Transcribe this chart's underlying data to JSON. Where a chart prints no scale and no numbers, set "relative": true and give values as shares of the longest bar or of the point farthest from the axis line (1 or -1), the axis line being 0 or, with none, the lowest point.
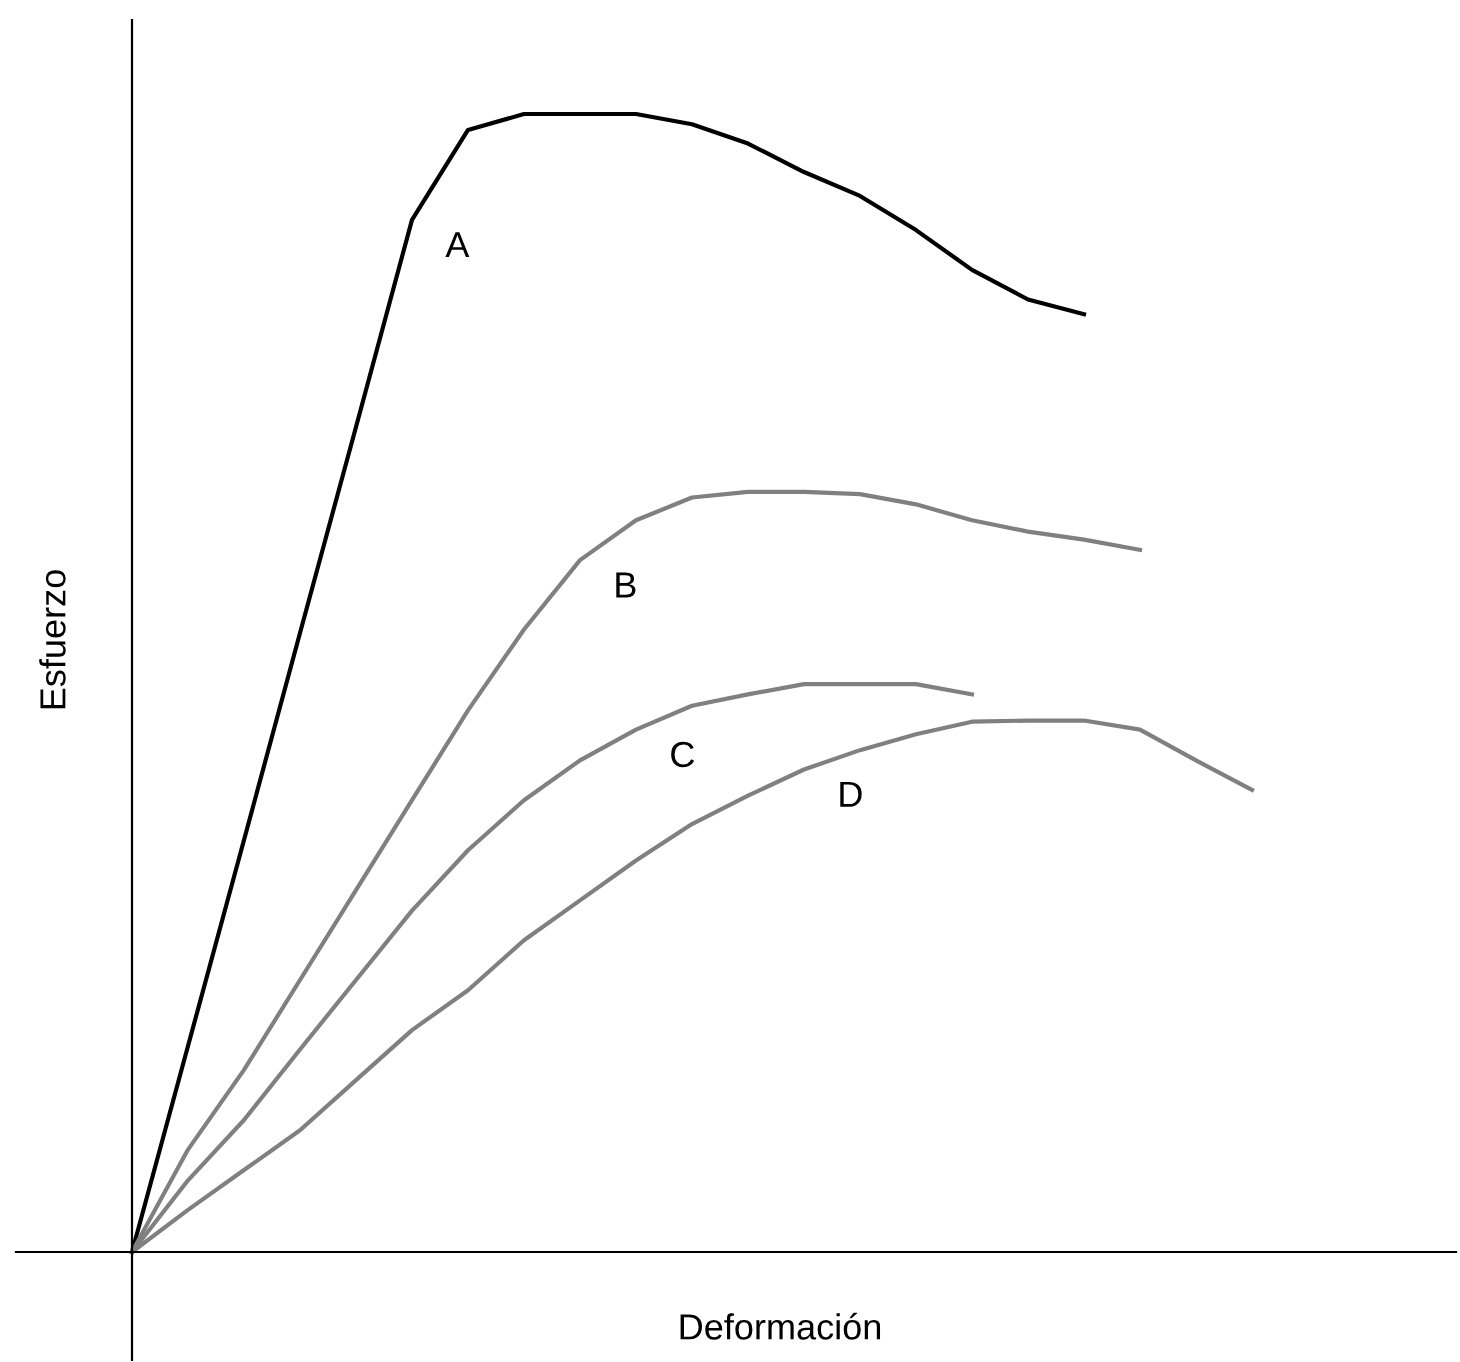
{
  "chart_data": {
    "type": "line",
    "relative": true,
    "xlabel": "Deformación",
    "ylabel": "Esfuerzo",
    "categories": [
      null,
      null,
      null,
      null,
      null,
      null,
      null,
      null,
      null,
      null,
      null,
      null,
      null,
      null,
      null,
      null,
      null,
      null,
      null,
      null,
      null
    ],
    "series": [
      {
        "name": "A",
        "color": "#000000",
        "values": [
          0,
          0.181,
          0.362,
          0.544,
          0.725,
          0.907,
          0.986,
          1.0,
          1.0,
          1.0,
          0.991,
          0.974,
          0.949,
          0.928,
          0.898,
          0.863,
          0.837,
          0.824,
          null,
          null,
          null
        ]
      },
      {
        "name": "B",
        "color": "#808080",
        "values": [
          0,
          0.09,
          0.16,
          0.239,
          0.318,
          0.397,
          0.476,
          0.547,
          0.608,
          0.643,
          0.663,
          0.668,
          0.668,
          0.666,
          0.657,
          0.643,
          0.633,
          0.626,
          0.617,
          null,
          null
        ]
      },
      {
        "name": "C",
        "color": "#808080",
        "values": [
          0,
          0.063,
          0.116,
          0.178,
          0.239,
          0.3,
          0.353,
          0.397,
          0.432,
          0.459,
          0.48,
          0.49,
          0.499,
          0.499,
          0.499,
          0.49,
          null,
          null,
          null,
          null,
          null
        ]
      },
      {
        "name": "D",
        "color": "#808080",
        "values": [
          0,
          0.037,
          0.072,
          0.107,
          0.151,
          0.195,
          0.23,
          0.274,
          0.309,
          0.344,
          0.376,
          0.401,
          0.424,
          0.441,
          0.455,
          0.466,
          0.467,
          0.467,
          0.459,
          0.432,
          0.406
        ]
      }
    ],
    "legend": false,
    "grid": false,
    "marker": "none",
    "line_style": "solid"
  }
}
